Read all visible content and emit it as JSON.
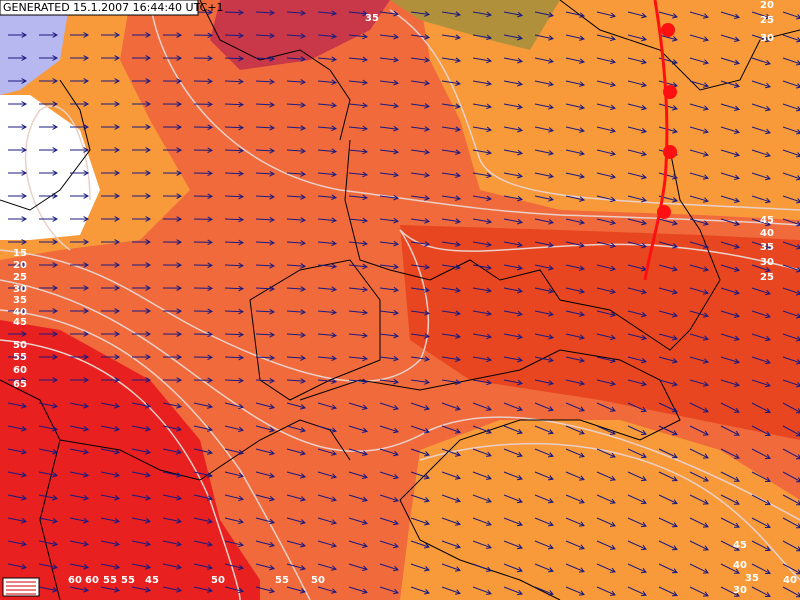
{
  "header": {
    "generated": "GENERATED 15.1.2007 16:44:40 UTC+1"
  },
  "contour_labels": [
    35,
    20,
    25,
    30,
    45,
    40,
    35,
    30,
    25,
    15,
    20,
    25,
    30,
    35,
    40,
    45,
    50,
    55,
    60,
    65,
    60,
    60,
    55,
    55,
    45,
    50,
    55,
    50,
    45,
    40,
    35,
    30,
    40
  ]
}
